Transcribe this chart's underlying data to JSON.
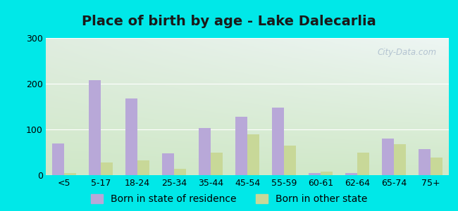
{
  "title": "Place of birth by age - Lake Dalecarlia",
  "categories": [
    "<5",
    "5-17",
    "18-24",
    "25-34",
    "35-44",
    "45-54",
    "55-59",
    "60-61",
    "62-64",
    "65-74",
    "75+"
  ],
  "born_in_state": [
    70,
    207,
    168,
    48,
    103,
    128,
    148,
    5,
    5,
    80,
    57
  ],
  "born_other_state": [
    5,
    28,
    32,
    14,
    50,
    90,
    65,
    8,
    50,
    68,
    38
  ],
  "bar_color_state": "#b8a8d8",
  "bar_color_other": "#c8d898",
  "background_outer": "#00e8e8",
  "background_plot_topleft": "#e0ede0",
  "background_plot_topright": "#e8f4f4",
  "background_plot_bottom": "#d0e8c8",
  "ylim": [
    0,
    300
  ],
  "yticks": [
    0,
    100,
    200,
    300
  ],
  "title_fontsize": 14,
  "legend_fontsize": 10,
  "tick_fontsize": 9,
  "bar_width": 0.32
}
